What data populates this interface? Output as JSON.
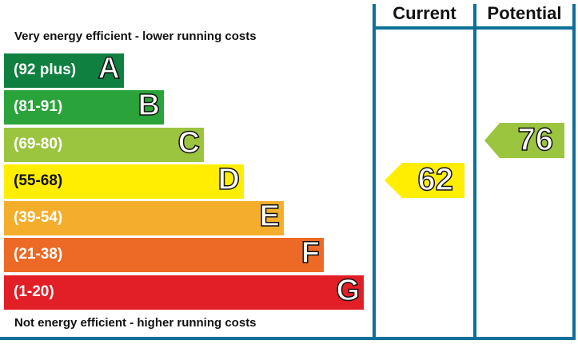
{
  "chart_data": {
    "type": "epc-rating",
    "headers": {
      "current": "Current",
      "potential": "Potential"
    },
    "top_note": "Very energy efficient - lower running costs",
    "bottom_note": "Not energy efficient - higher running costs",
    "bands": [
      {
        "letter": "A",
        "range": "(92 plus)",
        "color": "#0f8040"
      },
      {
        "letter": "B",
        "range": "(81-91)",
        "color": "#2aa33a"
      },
      {
        "letter": "C",
        "range": "(69-80)",
        "color": "#9bc43f"
      },
      {
        "letter": "D",
        "range": "(55-68)",
        "color": "#ffee00"
      },
      {
        "letter": "E",
        "range": "(39-54)",
        "color": "#f4ae2c"
      },
      {
        "letter": "F",
        "range": "(21-38)",
        "color": "#ec6a25"
      },
      {
        "letter": "G",
        "range": "(1-20)",
        "color": "#e21e26"
      }
    ],
    "current": {
      "value": "62",
      "band": "D",
      "color": "#ffee00"
    },
    "potential": {
      "value": "76",
      "band": "C",
      "color": "#9bc43f"
    }
  }
}
